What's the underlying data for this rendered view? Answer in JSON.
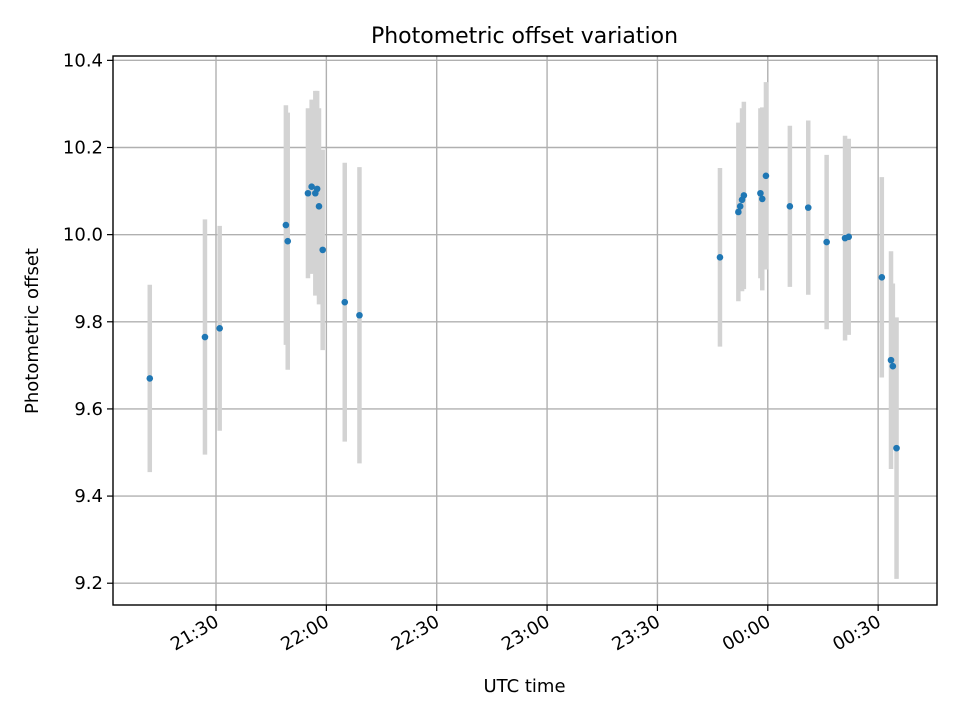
{
  "chart_data": {
    "type": "scatter",
    "title": "Photometric offset variation",
    "xlabel": "UTC time",
    "ylabel": "Photometric offset",
    "x_tick_labels": [
      "21:30",
      "22:00",
      "22:30",
      "23:00",
      "23:30",
      "00:00",
      "00:30"
    ],
    "y_tick_labels": [
      "9.2",
      "9.4",
      "9.6",
      "9.8",
      "10.0",
      "10.2",
      "10.4"
    ],
    "ylim": [
      9.15,
      10.41
    ],
    "xlim": [
      "21:02",
      "00:46"
    ],
    "grid": true,
    "colors": {
      "marker": "#1f77b4",
      "errorbar": "#d3d3d3"
    },
    "series": [
      {
        "points": [
          {
            "x": "21:12",
            "y": 9.67,
            "yerr": 0.215
          },
          {
            "x": "21:27",
            "y": 9.765,
            "yerr": 0.27
          },
          {
            "x": "21:31",
            "y": 9.785,
            "yerr": 0.235
          },
          {
            "x": "21:49",
            "y": 10.022,
            "yerr": 0.275
          },
          {
            "x": "21:49.5",
            "y": 9.985,
            "yerr": 0.295
          },
          {
            "x": "21:55",
            "y": 10.095,
            "yerr": 0.195
          },
          {
            "x": "21:56",
            "y": 10.11,
            "yerr": 0.2
          },
          {
            "x": "21:57",
            "y": 10.095,
            "yerr": 0.235
          },
          {
            "x": "21:57.5",
            "y": 10.105,
            "yerr": 0.225
          },
          {
            "x": "21:58",
            "y": 10.065,
            "yerr": 0.225
          },
          {
            "x": "21:59",
            "y": 9.965,
            "yerr": 0.23
          },
          {
            "x": "22:05",
            "y": 9.845,
            "yerr": 0.32
          },
          {
            "x": "22:09",
            "y": 9.815,
            "yerr": 0.34
          },
          {
            "x": "23:47",
            "y": 9.948,
            "yerr": 0.205
          },
          {
            "x": "23:52",
            "y": 10.052,
            "yerr": 0.205
          },
          {
            "x": "23:52.5",
            "y": 10.065,
            "yerr": 0.19
          },
          {
            "x": "23:53",
            "y": 10.08,
            "yerr": 0.21
          },
          {
            "x": "23:53.5",
            "y": 10.09,
            "yerr": 0.215
          },
          {
            "x": "23:58",
            "y": 10.095,
            "yerr": 0.195
          },
          {
            "x": "23:58.5",
            "y": 10.082,
            "yerr": 0.21
          },
          {
            "x": "23:59.5",
            "y": 10.135,
            "yerr": 0.215
          },
          {
            "x": "00:06",
            "y": 10.065,
            "yerr": 0.185
          },
          {
            "x": "00:11",
            "y": 10.062,
            "yerr": 0.2
          },
          {
            "x": "00:16",
            "y": 9.983,
            "yerr": 0.2
          },
          {
            "x": "00:21",
            "y": 9.992,
            "yerr": 0.235
          },
          {
            "x": "00:22",
            "y": 9.995,
            "yerr": 0.225
          },
          {
            "x": "00:31",
            "y": 9.902,
            "yerr": 0.23
          },
          {
            "x": "00:33.5",
            "y": 9.712,
            "yerr": 0.25
          },
          {
            "x": "00:34",
            "y": 9.698,
            "yerr": 0.19
          },
          {
            "x": "00:35",
            "y": 9.51,
            "yerr": 0.3
          }
        ]
      }
    ]
  }
}
